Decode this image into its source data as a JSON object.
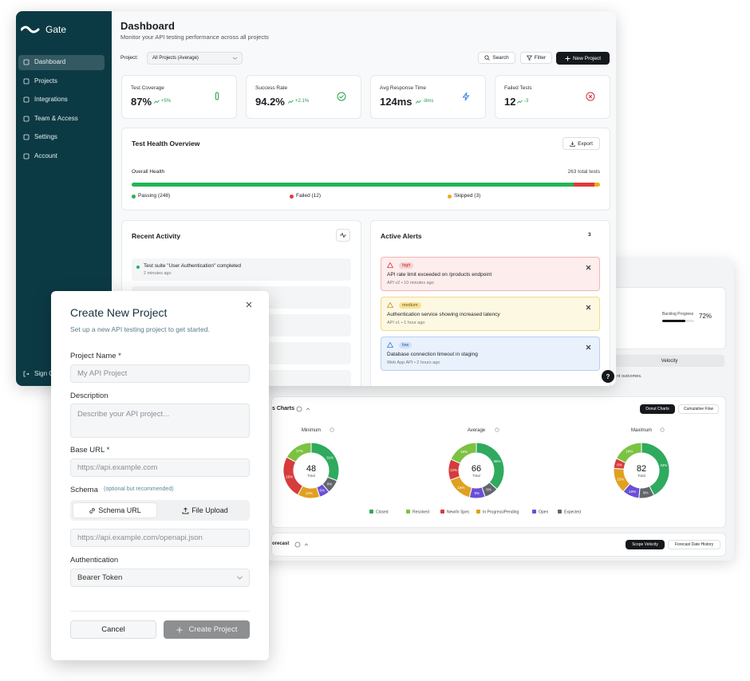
{
  "dashboard": {
    "brand": "Gate",
    "nav": [
      "Dashboard",
      "Projects",
      "Integrations",
      "Team & Access",
      "Settings",
      "Account"
    ],
    "sign_out": "Sign Out",
    "title": "Dashboard",
    "subtitle": "Monitor your API testing performance across all projects",
    "project_label": "Project:",
    "project_select": "All Projects (Average)",
    "search": "Search",
    "filter": "Filter",
    "new_project": "New Project",
    "stats": [
      {
        "label": "Test Coverage",
        "value": "87%",
        "trend": "+5%"
      },
      {
        "label": "Success Rate",
        "value": "94.2%",
        "trend": "+2.1%"
      },
      {
        "label": "Avg Response Time",
        "value": "124ms",
        "trend": "-8ms"
      },
      {
        "label": "Failed Tests",
        "value": "12",
        "trend": "-3"
      }
    ],
    "health": {
      "title": "Test Health Overview",
      "export": "Export",
      "label": "Overall Health",
      "total_label": "263 total tests",
      "segments": [
        {
          "label": "Passing (248)",
          "count": 248,
          "color": "#22b455"
        },
        {
          "label": "Failed (12)",
          "count": 12,
          "color": "#e03a3a"
        },
        {
          "label": "Skipped (3)",
          "count": 3,
          "color": "#f0a91b"
        }
      ]
    },
    "recent_activity": {
      "title": "Recent Activity",
      "items": [
        {
          "text": "Test suite \"User Authentication\" completed",
          "time": "2 minutes ago"
        }
      ]
    },
    "alerts": {
      "title": "Active Alerts",
      "count": 3,
      "items": [
        {
          "level": "high",
          "text": "API rate limit exceeded on /products endpoint",
          "meta": "API v2 • 10 minutes ago"
        },
        {
          "level": "medium",
          "text": "Authentication service showing increased latency",
          "meta": "API v1 • 1 hour ago"
        },
        {
          "level": "low",
          "text": "Database connection timeout in staging",
          "meta": "Web App API • 2 hours ago"
        }
      ]
    }
  },
  "analytics": {
    "backlog": {
      "label": "Backlog Progress",
      "value": 72,
      "value_label": "72%"
    },
    "velocity_tab": "Velocity",
    "note": "nt outcomes.",
    "help": "?",
    "charts_title": "s Charts",
    "chart_buttons": [
      "Donut Charts",
      "Cumulative Flow"
    ],
    "segments": [
      {
        "name": "Closed",
        "color": "#2faa5e"
      },
      {
        "name": "Resolved",
        "color": "#7cc242"
      },
      {
        "name": "New/In Spec",
        "color": "#d63c3c"
      },
      {
        "name": "In Progress/Pending",
        "color": "#e0a020"
      },
      {
        "name": "Open",
        "color": "#6a4fd8"
      },
      {
        "name": "Expected",
        "color": "#62666b"
      }
    ],
    "total_caption": "Total",
    "donuts": [
      {
        "label": "Minimum",
        "total": 48,
        "values": [
          31,
          17,
          25,
          13,
          6,
          8
        ],
        "value_labels": [
          "31%",
          "17%",
          "25%",
          "13%",
          "6%",
          "8%"
        ]
      },
      {
        "label": "Average",
        "total": 66,
        "values": [
          36,
          18,
          12,
          15,
          9,
          8
        ],
        "value_labels": [
          "36%",
          "18%",
          "12%",
          "15%",
          "9%",
          "8%"
        ]
      },
      {
        "label": "Maximum",
        "total": 82,
        "values": [
          43,
          18,
          6,
          15,
          10,
          9
        ],
        "value_labels": [
          "43%",
          "18%",
          "6%",
          "15%",
          "10%",
          "9%"
        ]
      }
    ],
    "forecast_title": "orecast",
    "forecast_buttons": [
      "Scope Velocity",
      "Forecast Date History"
    ]
  },
  "modal": {
    "title": "Create New Project",
    "subtitle": "Set up a new API testing project to get started.",
    "name_label": "Project Name *",
    "name_placeholder": "My API Project",
    "description_label": "Description",
    "description_placeholder": "Describe your API project...",
    "url_label": "Base URL *",
    "url_placeholder": "https://api.example.com",
    "schema_label": "Schema",
    "schema_note": "(optional but recommended)",
    "schema_tabs": [
      "Schema URL",
      "File Upload"
    ],
    "schema_placeholder": "https://api.example.com/openapi.json",
    "auth_label": "Authentication",
    "auth_value": "Bearer Token",
    "cancel": "Cancel",
    "create": "Create Project"
  }
}
